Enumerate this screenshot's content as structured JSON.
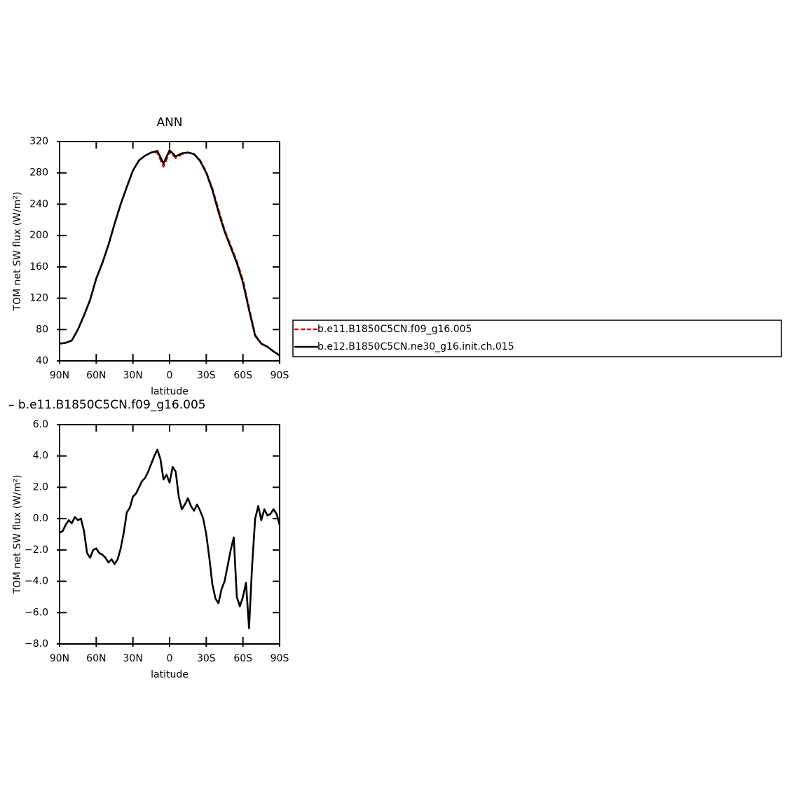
{
  "chart_data": [
    {
      "type": "line",
      "title": "ANN",
      "xlabel": "latitude",
      "ylabel": "TOM net SW flux (W/m²)",
      "x": [
        90,
        85,
        80,
        75,
        70,
        65,
        60,
        55,
        50,
        45,
        40,
        35,
        30,
        25,
        20,
        15,
        10,
        5,
        0,
        -5,
        -10,
        -15,
        -20,
        -25,
        -30,
        -35,
        -40,
        -45,
        -50,
        -55,
        -60,
        -65,
        -70,
        -75,
        -80,
        -85,
        -90
      ],
      "series": [
        {
          "name": "b.e11.B1850C5CN.f09_g16.005",
          "color": "#e00000",
          "dashed": true,
          "values": [
            62,
            63,
            66,
            80,
            98,
            118,
            145,
            165,
            188,
            215,
            240,
            262,
            283,
            296,
            302,
            306,
            306,
            288,
            307,
            299,
            304,
            306,
            304,
            296,
            281,
            260,
            233,
            207,
            187,
            167,
            143,
            107,
            73,
            62,
            58,
            52,
            47
          ]
        },
        {
          "name": "b.e12.B1850C5CN.ne30_g16.init.ch.015",
          "color": "#000000",
          "dashed": false,
          "values": [
            62,
            63,
            66,
            80,
            98,
            118,
            145,
            165,
            188,
            215,
            240,
            262,
            283,
            296,
            302,
            306,
            308,
            292,
            309,
            301,
            305,
            306,
            304,
            295,
            280,
            258,
            230,
            205,
            185,
            165,
            140,
            105,
            72,
            62,
            58,
            52,
            47
          ]
        }
      ],
      "xlim": [
        90,
        -90
      ],
      "xticks": [
        {
          "value": 90,
          "label": "90N"
        },
        {
          "value": 60,
          "label": "60N"
        },
        {
          "value": 30,
          "label": "30N"
        },
        0,
        {
          "value": -30,
          "label": "30S"
        },
        {
          "value": -60,
          "label": "60S"
        },
        {
          "value": -90,
          "label": "90S"
        }
      ],
      "ylim": [
        40,
        320
      ],
      "yticks": [
        40,
        80,
        120,
        160,
        200,
        240,
        280,
        320
      ],
      "legend": true
    },
    {
      "type": "line",
      "title": "– b.e11.B1850C5CN.f09_g16.005",
      "xlabel": "latitude",
      "ylabel": "TOM net SW flux (W/m²)",
      "x": [
        90,
        87.5,
        85,
        82.5,
        80,
        77.5,
        75,
        72.5,
        70,
        67.5,
        65,
        62.5,
        60,
        57.5,
        55,
        52.5,
        50,
        47.5,
        45,
        42.5,
        40,
        37.5,
        35,
        32.5,
        30,
        27.5,
        25,
        22.5,
        20,
        17.5,
        15,
        12.5,
        10,
        7.5,
        5,
        2.5,
        0,
        -2.5,
        -5,
        -7.5,
        -10,
        -12.5,
        -15,
        -17.5,
        -20,
        -22.5,
        -25,
        -27.5,
        -30,
        -32.5,
        -35,
        -37.5,
        -40,
        -42.5,
        -45,
        -47.5,
        -50,
        -52.5,
        -55,
        -57.5,
        -60,
        -62.5,
        -65,
        -67.5,
        -70,
        -72.5,
        -75,
        -77.5,
        -80,
        -82.5,
        -85,
        -87.5,
        -90
      ],
      "series": [
        {
          "color": "#000000",
          "dashed": false,
          "values": [
            -0.9,
            -0.8,
            -0.4,
            -0.1,
            -0.3,
            0.1,
            -0.1,
            0.0,
            -0.8,
            -2.2,
            -2.5,
            -2.0,
            -1.9,
            -2.2,
            -2.3,
            -2.5,
            -2.8,
            -2.6,
            -2.9,
            -2.6,
            -1.9,
            -0.9,
            0.4,
            0.7,
            1.4,
            1.6,
            2.0,
            2.4,
            2.6,
            3.0,
            3.5,
            4.0,
            4.4,
            3.8,
            2.5,
            2.8,
            2.3,
            3.3,
            3.0,
            1.4,
            0.6,
            0.9,
            1.3,
            0.8,
            0.5,
            0.9,
            0.5,
            0.0,
            -1.0,
            -2.5,
            -4.2,
            -5.1,
            -5.4,
            -4.5,
            -4.0,
            -3.0,
            -2.0,
            -1.2,
            -5.0,
            -5.6,
            -5.0,
            -4.1,
            -7.0,
            -3.0,
            0.0,
            0.8,
            -0.1,
            0.6,
            0.2,
            0.3,
            0.6,
            0.3,
            -0.4
          ]
        }
      ],
      "xlim": [
        90,
        -90
      ],
      "xticks": [
        {
          "value": 90,
          "label": "90N"
        },
        {
          "value": 60,
          "label": "60N"
        },
        {
          "value": 30,
          "label": "30N"
        },
        0,
        {
          "value": -30,
          "label": "30S"
        },
        {
          "value": -60,
          "label": "60S"
        },
        {
          "value": -90,
          "label": "90S"
        }
      ],
      "ylim": [
        -8,
        6
      ],
      "yticks": [
        {
          "value": -8,
          "label": "−8.0"
        },
        {
          "value": -6,
          "label": "−6.0"
        },
        {
          "value": -4,
          "label": "−4.0"
        },
        {
          "value": -2,
          "label": "−2.0"
        },
        {
          "value": 0,
          "label": "0.0"
        },
        {
          "value": 2,
          "label": "2.0"
        },
        {
          "value": 4,
          "label": "4.0"
        },
        {
          "value": 6,
          "label": "6.0"
        }
      ]
    }
  ]
}
